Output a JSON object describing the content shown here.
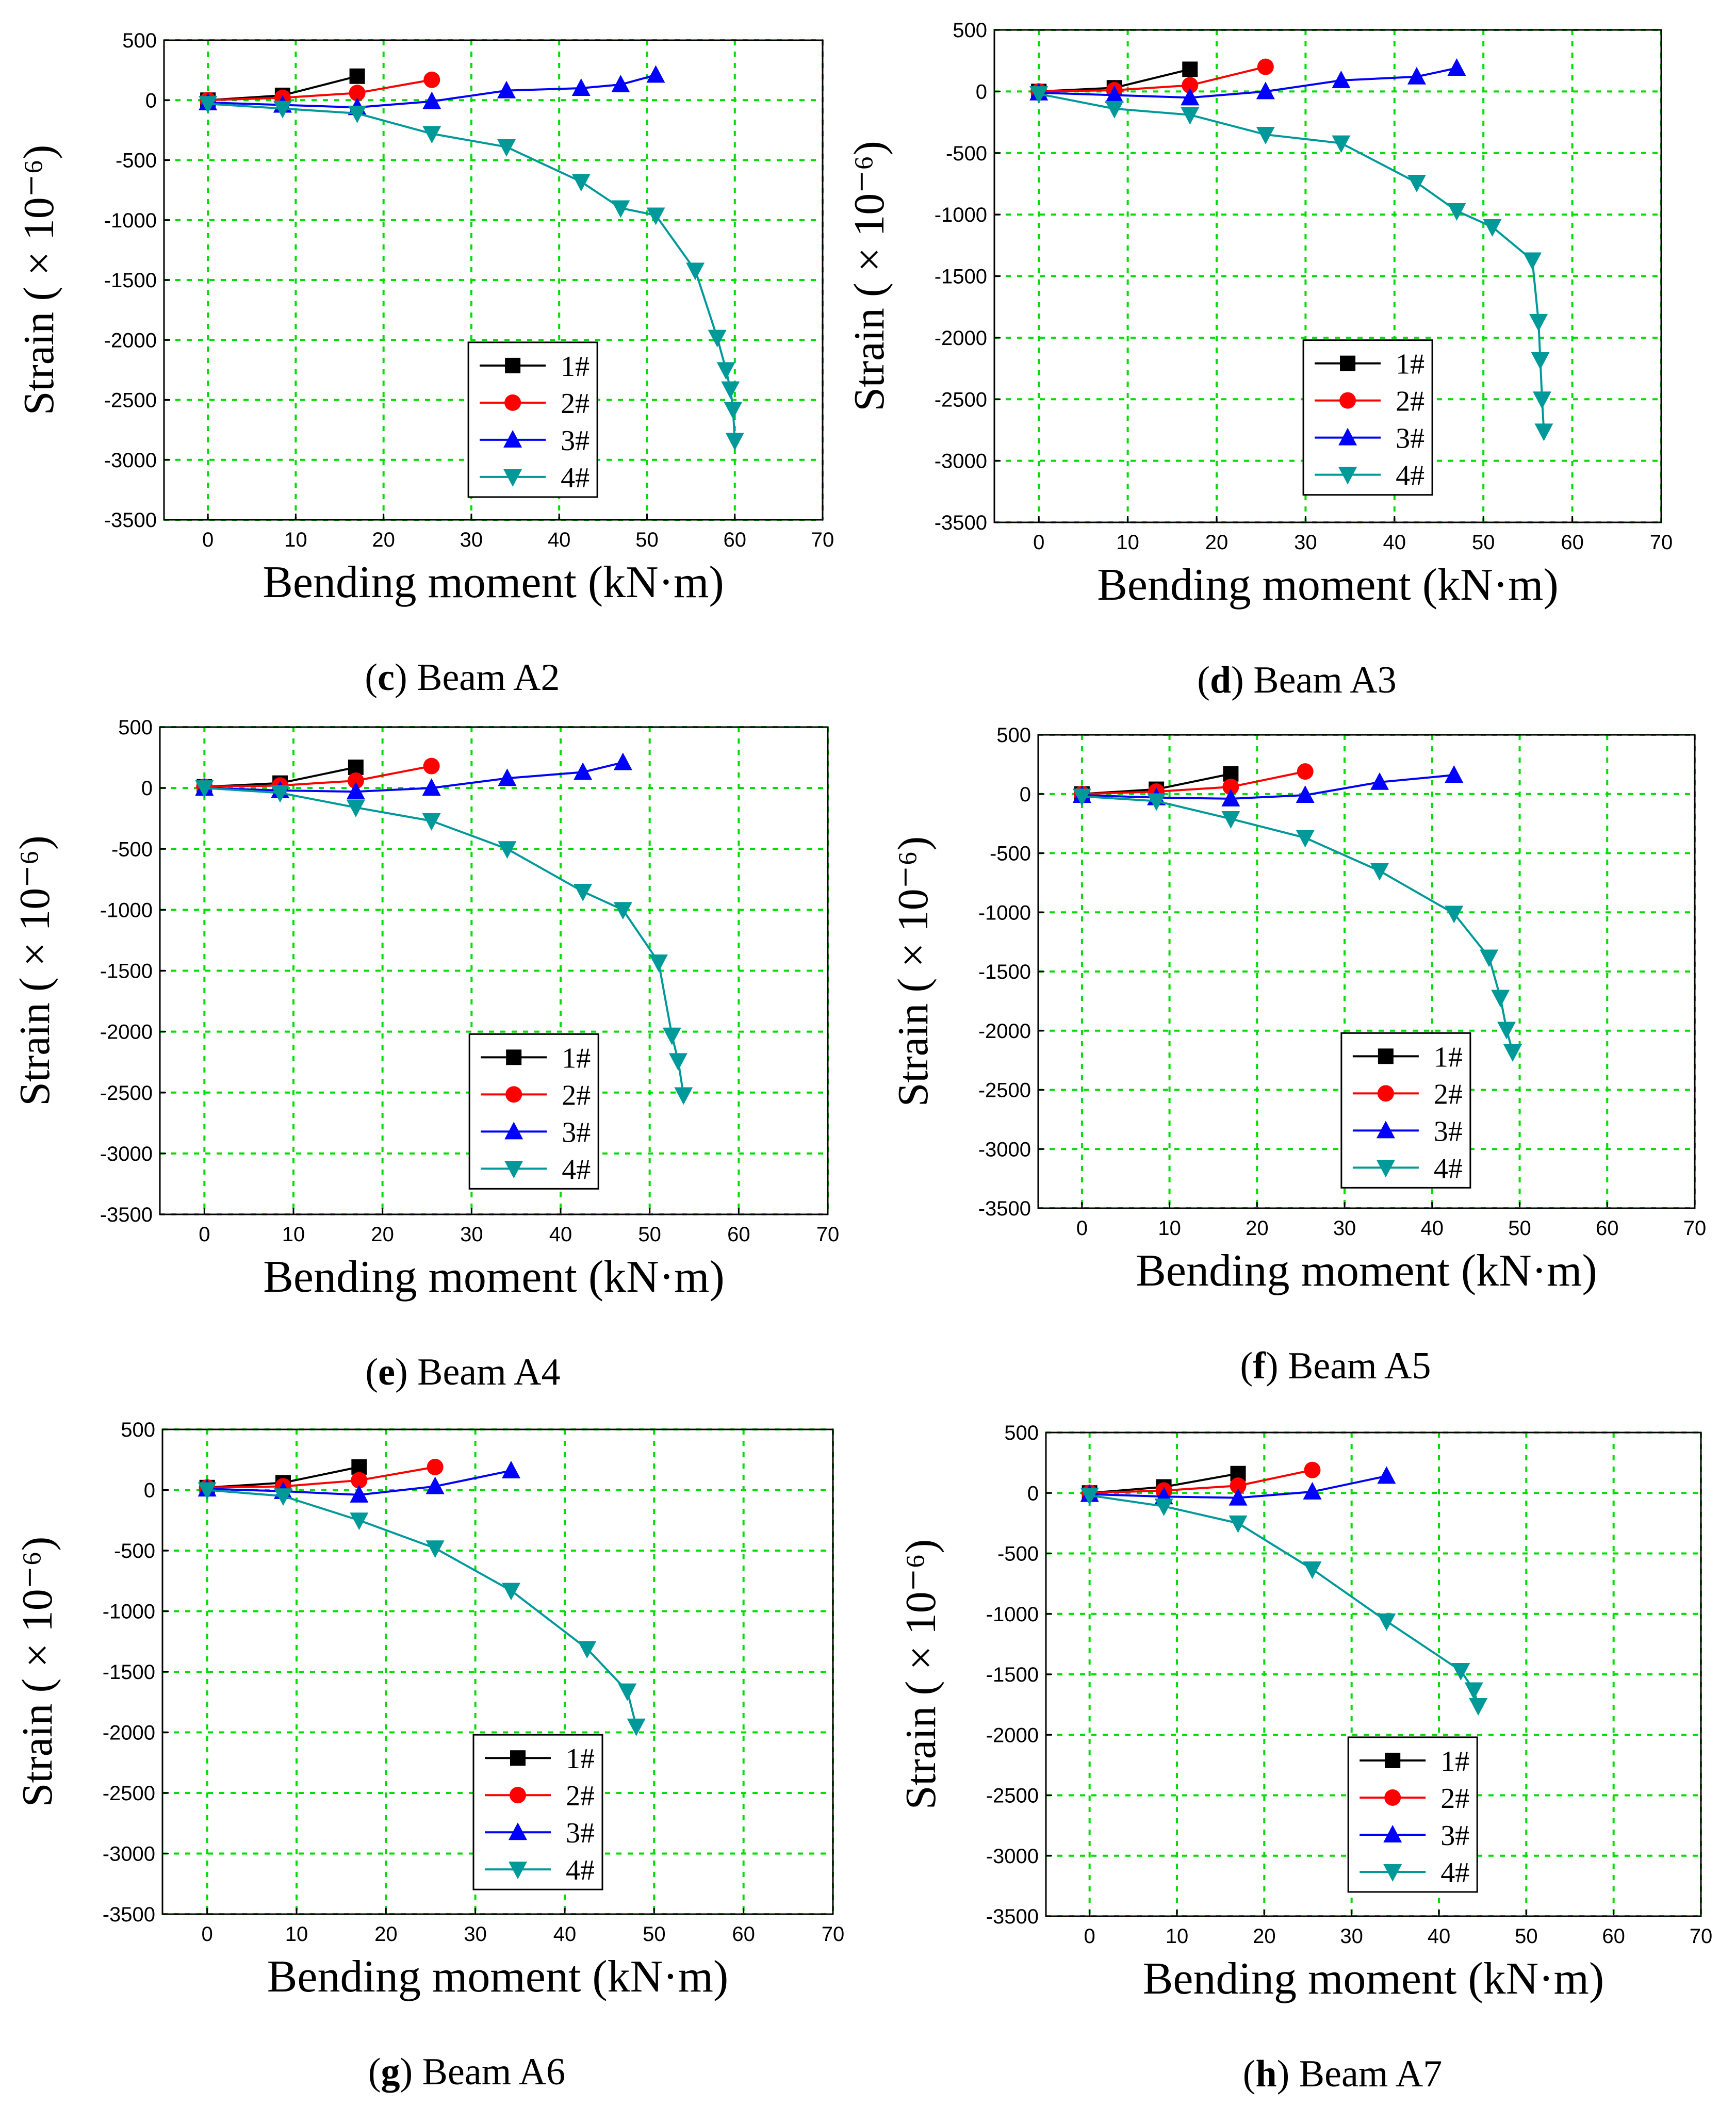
{
  "chart_data": [
    {
      "type": "line",
      "caption_letter": "c",
      "caption_text": "Beam A2",
      "xlabel": "Bending moment (kN·m)",
      "ylabel": "Strain ( × 10⁻⁶)",
      "xlim": [
        -5,
        70
      ],
      "ylim": [
        -3500,
        500
      ],
      "xticks": [
        "0",
        "10",
        "20",
        "30",
        "40",
        "50",
        "60",
        "70"
      ],
      "yticks": [
        "500",
        "0",
        "-500",
        "-1000",
        "-1500",
        "-2000",
        "-2500",
        "-3000",
        "-3500"
      ],
      "legend": [
        "1#",
        "2#",
        "3#",
        "4#"
      ],
      "series": [
        {
          "name": "1#",
          "points": [
            [
              0,
              0
            ],
            [
              8.5,
              40
            ],
            [
              17,
              200
            ]
          ]
        },
        {
          "name": "2#",
          "points": [
            [
              0,
              0
            ],
            [
              8.5,
              20
            ],
            [
              17,
              60
            ],
            [
              25.5,
              170
            ]
          ]
        },
        {
          "name": "3#",
          "points": [
            [
              0,
              -20
            ],
            [
              8.5,
              -40
            ],
            [
              17,
              -60
            ],
            [
              25.5,
              -10
            ],
            [
              34,
              80
            ],
            [
              42.5,
              100
            ],
            [
              47,
              130
            ],
            [
              51,
              210
            ]
          ]
        },
        {
          "name": "4#",
          "points": [
            [
              0,
              -30
            ],
            [
              8.5,
              -70
            ],
            [
              17,
              -110
            ],
            [
              25.5,
              -280
            ],
            [
              34,
              -390
            ],
            [
              42.5,
              -680
            ],
            [
              47,
              -900
            ],
            [
              51,
              -960
            ],
            [
              55.5,
              -1420
            ],
            [
              58,
              -1980
            ],
            [
              59,
              -2250
            ],
            [
              59.5,
              -2410
            ],
            [
              59.8,
              -2580
            ],
            [
              60,
              -2840
            ]
          ]
        }
      ]
    },
    {
      "type": "line",
      "caption_letter": "d",
      "caption_text": "Beam A3",
      "xlabel": "Bending moment (kN·m)",
      "ylabel": "Strain ( × 10⁻⁶)",
      "xlim": [
        -5,
        70
      ],
      "ylim": [
        -3500,
        500
      ],
      "xticks": [
        "0",
        "10",
        "20",
        "30",
        "40",
        "50",
        "60",
        "70"
      ],
      "yticks": [
        "500",
        "0",
        "-500",
        "-1000",
        "-1500",
        "-2000",
        "-2500",
        "-3000",
        "-3500"
      ],
      "legend": [
        "1#",
        "2#",
        "3#",
        "4#"
      ],
      "series": [
        {
          "name": "1#",
          "points": [
            [
              0,
              0
            ],
            [
              8.5,
              30
            ],
            [
              17,
              180
            ]
          ]
        },
        {
          "name": "2#",
          "points": [
            [
              0,
              0
            ],
            [
              8.5,
              10
            ],
            [
              17,
              50
            ],
            [
              25.5,
              200
            ]
          ]
        },
        {
          "name": "3#",
          "points": [
            [
              0,
              -10
            ],
            [
              8.5,
              -30
            ],
            [
              17,
              -50
            ],
            [
              25.5,
              0
            ],
            [
              34,
              90
            ],
            [
              42.5,
              120
            ],
            [
              47,
              190
            ]
          ]
        },
        {
          "name": "4#",
          "points": [
            [
              0,
              -20
            ],
            [
              8.5,
              -140
            ],
            [
              17,
              -190
            ],
            [
              25.5,
              -350
            ],
            [
              34,
              -420
            ],
            [
              42.5,
              -740
            ],
            [
              47,
              -970
            ],
            [
              51,
              -1100
            ],
            [
              55.5,
              -1370
            ],
            [
              56.2,
              -1870
            ],
            [
              56.4,
              -2180
            ],
            [
              56.6,
              -2500
            ],
            [
              56.8,
              -2760
            ]
          ]
        }
      ]
    },
    {
      "type": "line",
      "caption_letter": "e",
      "caption_text": "Beam A4",
      "xlabel": "Bending moment (kN·m)",
      "ylabel": "Strain ( × 10⁻⁶)",
      "xlim": [
        -5,
        70
      ],
      "ylim": [
        -3500,
        500
      ],
      "xticks": [
        "0",
        "10",
        "20",
        "30",
        "40",
        "50",
        "60",
        "70"
      ],
      "yticks": [
        "500",
        "0",
        "-500",
        "-1000",
        "-1500",
        "-2000",
        "-2500",
        "-3000",
        "-3500"
      ],
      "legend": [
        "1#",
        "2#",
        "3#",
        "4#"
      ],
      "series": [
        {
          "name": "1#",
          "points": [
            [
              0,
              10
            ],
            [
              8.5,
              40
            ],
            [
              17,
              170
            ]
          ]
        },
        {
          "name": "2#",
          "points": [
            [
              0,
              10
            ],
            [
              8.5,
              20
            ],
            [
              17,
              60
            ],
            [
              25.5,
              180
            ]
          ]
        },
        {
          "name": "3#",
          "points": [
            [
              0,
              0
            ],
            [
              8.5,
              -20
            ],
            [
              17,
              -30
            ],
            [
              25.5,
              0
            ],
            [
              34,
              80
            ],
            [
              42.5,
              130
            ],
            [
              47,
              210
            ]
          ]
        },
        {
          "name": "4#",
          "points": [
            [
              0,
              0
            ],
            [
              8.5,
              -40
            ],
            [
              17,
              -160
            ],
            [
              25.5,
              -270
            ],
            [
              34,
              -500
            ],
            [
              42.5,
              -850
            ],
            [
              47,
              -1000
            ],
            [
              51,
              -1430
            ],
            [
              52.5,
              -2030
            ],
            [
              53.2,
              -2240
            ],
            [
              53.8,
              -2520
            ]
          ]
        }
      ]
    },
    {
      "type": "line",
      "caption_letter": "f",
      "caption_text": "Beam A5",
      "xlabel": "Bending moment (kN·m)",
      "ylabel": "Strain ( × 10⁻⁶)",
      "xlim": [
        -5,
        70
      ],
      "ylim": [
        -3500,
        500
      ],
      "xticks": [
        "0",
        "10",
        "20",
        "30",
        "40",
        "50",
        "60",
        "70"
      ],
      "yticks": [
        "500",
        "0",
        "-500",
        "-1000",
        "-1500",
        "-2000",
        "-2500",
        "-3000",
        "-3500"
      ],
      "legend": [
        "1#",
        "2#",
        "3#",
        "4#"
      ],
      "series": [
        {
          "name": "1#",
          "points": [
            [
              0,
              0
            ],
            [
              8.5,
              40
            ],
            [
              17,
              170
            ]
          ]
        },
        {
          "name": "2#",
          "points": [
            [
              0,
              0
            ],
            [
              8.5,
              20
            ],
            [
              17,
              60
            ],
            [
              25.5,
              190
            ]
          ]
        },
        {
          "name": "3#",
          "points": [
            [
              0,
              -10
            ],
            [
              8.5,
              -30
            ],
            [
              17,
              -40
            ],
            [
              25.5,
              -10
            ],
            [
              34,
              100
            ],
            [
              42.5,
              160
            ]
          ]
        },
        {
          "name": "4#",
          "points": [
            [
              0,
              -20
            ],
            [
              8.5,
              -60
            ],
            [
              17,
              -210
            ],
            [
              25.5,
              -370
            ],
            [
              34,
              -650
            ],
            [
              42.5,
              -1010
            ],
            [
              46.5,
              -1380
            ],
            [
              47.8,
              -1720
            ],
            [
              48.5,
              -1990
            ],
            [
              49.2,
              -2180
            ]
          ]
        }
      ]
    },
    {
      "type": "line",
      "caption_letter": "g",
      "caption_text": "Beam A6",
      "xlabel": "Bending moment (kN·m)",
      "ylabel": "Strain ( × 10⁻⁶)",
      "xlim": [
        -5,
        70
      ],
      "ylim": [
        -3500,
        500
      ],
      "xticks": [
        "0",
        "10",
        "20",
        "30",
        "40",
        "50",
        "60",
        "70"
      ],
      "yticks": [
        "500",
        "0",
        "-500",
        "-1000",
        "-1500",
        "-2000",
        "-2500",
        "-3000",
        "-3500"
      ],
      "legend": [
        "1#",
        "2#",
        "3#",
        "4#"
      ],
      "series": [
        {
          "name": "1#",
          "points": [
            [
              0,
              20
            ],
            [
              8.5,
              60
            ],
            [
              17,
              190
            ]
          ]
        },
        {
          "name": "2#",
          "points": [
            [
              0,
              20
            ],
            [
              8.5,
              30
            ],
            [
              17,
              80
            ],
            [
              25.5,
              190
            ]
          ]
        },
        {
          "name": "3#",
          "points": [
            [
              0,
              10
            ],
            [
              8.5,
              -10
            ],
            [
              17,
              -40
            ],
            [
              25.5,
              30
            ],
            [
              34,
              160
            ]
          ]
        },
        {
          "name": "4#",
          "points": [
            [
              0,
              0
            ],
            [
              8.5,
              -50
            ],
            [
              17,
              -250
            ],
            [
              25.5,
              -480
            ],
            [
              34,
              -830
            ],
            [
              42.5,
              -1310
            ],
            [
              47,
              -1660
            ],
            [
              48,
              -1950
            ]
          ]
        }
      ]
    },
    {
      "type": "line",
      "caption_letter": "h",
      "caption_text": "Beam A7",
      "xlabel": "Bending moment (kN·m)",
      "ylabel": "Strain ( × 10⁻⁶)",
      "xlim": [
        -5,
        70
      ],
      "ylim": [
        -3500,
        500
      ],
      "xticks": [
        "0",
        "10",
        "20",
        "30",
        "40",
        "50",
        "60",
        "70"
      ],
      "yticks": [
        "500",
        "0",
        "-500",
        "-1000",
        "-1500",
        "-2000",
        "-2500",
        "-3000",
        "-3500"
      ],
      "legend": [
        "1#",
        "2#",
        "3#",
        "4#"
      ],
      "series": [
        {
          "name": "1#",
          "points": [
            [
              0,
              0
            ],
            [
              8.5,
              50
            ],
            [
              17,
              160
            ]
          ]
        },
        {
          "name": "2#",
          "points": [
            [
              0,
              0
            ],
            [
              8.5,
              20
            ],
            [
              17,
              60
            ],
            [
              25.5,
              190
            ]
          ]
        },
        {
          "name": "3#",
          "points": [
            [
              0,
              -10
            ],
            [
              8.5,
              -30
            ],
            [
              17,
              -40
            ],
            [
              25.5,
              10
            ],
            [
              34,
              140
            ]
          ]
        },
        {
          "name": "4#",
          "points": [
            [
              0,
              -20
            ],
            [
              8.5,
              -110
            ],
            [
              17,
              -250
            ],
            [
              25.5,
              -630
            ],
            [
              34,
              -1060
            ],
            [
              42.5,
              -1470
            ],
            [
              44,
              -1630
            ],
            [
              44.5,
              -1760
            ]
          ]
        }
      ]
    }
  ],
  "series_styles": [
    {
      "color": "#000000",
      "marker": "square"
    },
    {
      "color": "#ff0000",
      "marker": "circle"
    },
    {
      "color": "#0000ff",
      "marker": "triangle-up"
    },
    {
      "color": "#009999",
      "marker": "triangle-down"
    }
  ]
}
